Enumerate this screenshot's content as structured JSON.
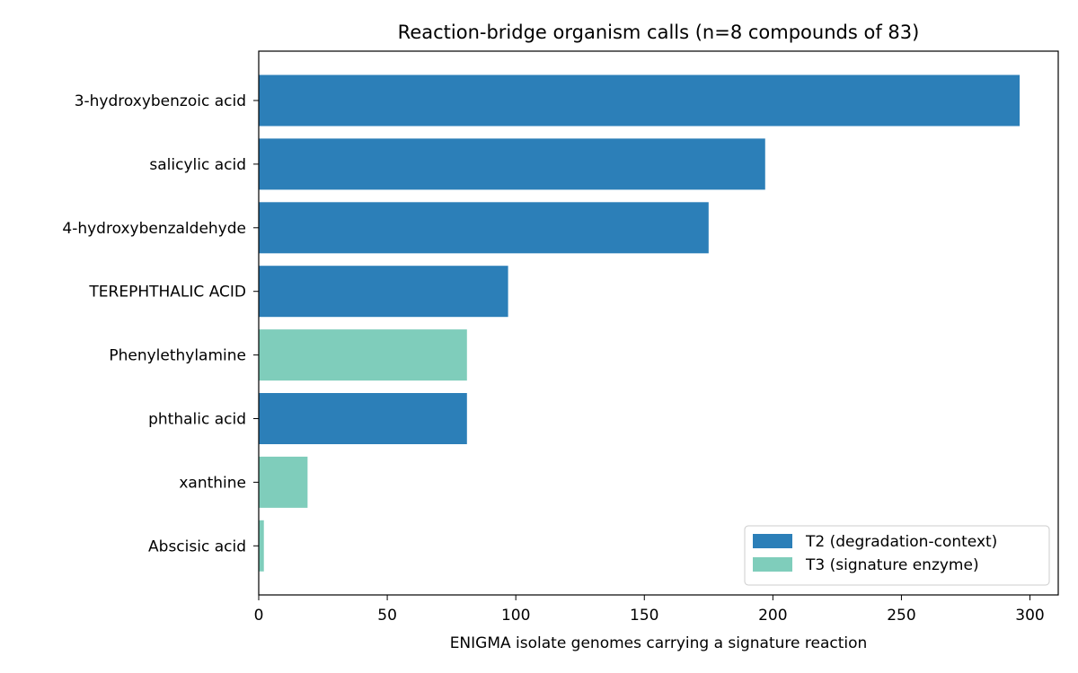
{
  "chart_data": {
    "type": "bar",
    "orientation": "horizontal",
    "title": "Reaction-bridge organism calls (n=8 compounds of 83)",
    "xlabel": "ENIGMA isolate genomes carrying a signature reaction",
    "ylabel": "",
    "xlim": [
      0,
      311
    ],
    "xticks": [
      "0",
      "50",
      "100",
      "150",
      "200",
      "250",
      "300"
    ],
    "grid": false,
    "legend_position": "lower-right",
    "categories": [
      "3-hydroxybenzoic acid",
      "salicylic acid",
      "4-hydroxybenzaldehyde",
      "TEREPHTHALIC ACID",
      "Phenylethylamine",
      "phthalic acid",
      "xanthine",
      "Abscisic acid"
    ],
    "values": [
      296,
      197,
      175,
      97,
      81,
      81,
      19,
      2
    ],
    "tiers": [
      "T2",
      "T2",
      "T2",
      "T2",
      "T3",
      "T2",
      "T3",
      "T3"
    ],
    "legend": [
      {
        "tier": "T2",
        "label": "T2 (degradation-context)",
        "color": "#2c7fb8"
      },
      {
        "tier": "T3",
        "label": "T3 (signature enzyme)",
        "color": "#7fcdbb"
      }
    ]
  }
}
